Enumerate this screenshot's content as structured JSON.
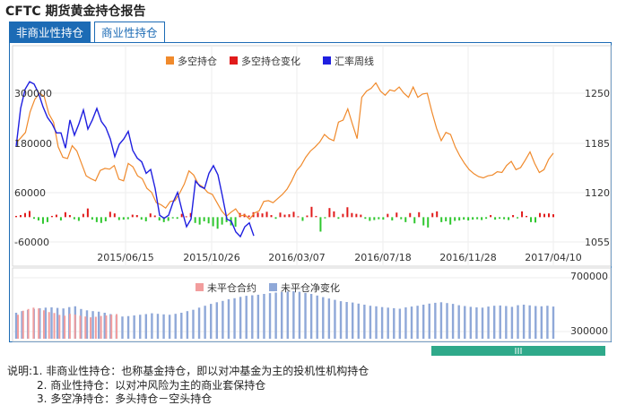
{
  "page": {
    "title": "CFTC 期货黄金持仓报告",
    "tabs": [
      {
        "label": "非商业性持仓",
        "active": true
      },
      {
        "label": "商业性持仓",
        "active": false
      }
    ],
    "notes": [
      "说明:1. 非商业性持仓：也称基金持仓，即以对冲基金为主的投机性机构持仓",
      "2. 商业性持仓：以对冲风险为主的商业套保持仓",
      "3. 多空净持仓：多头持仓－空头持仓"
    ]
  },
  "chart_data": [
    {
      "type": "line",
      "legend": [
        "多空持仓",
        "多空持仓变化",
        "汇率周线"
      ],
      "x_ticks": [
        "2015/06/15",
        "2015/10/26",
        "2016/03/07",
        "2016/07/18",
        "2016/11/28",
        "2017/04/10"
      ],
      "left_ticks": [
        "300000",
        "180000",
        "60000",
        "-60000"
      ],
      "right_ticks": [
        "1250",
        "1185",
        "1120",
        "1055"
      ],
      "yleft_lim": [
        -60000,
        300000
      ],
      "yright_lim": [
        1055,
        1250
      ],
      "series": [
        {
          "name": "多空持仓",
          "color": "#f08a2c",
          "axis": "left",
          "values": [
            180000,
            192000,
            205000,
            255000,
            285000,
            300000,
            292000,
            250000,
            230000,
            170000,
            145000,
            142000,
            173000,
            160000,
            130000,
            100000,
            93000,
            88000,
            113000,
            118000,
            116000,
            125000,
            92000,
            88000,
            130000,
            122000,
            100000,
            93000,
            70000,
            60000,
            35000,
            30000,
            22000,
            38000,
            40000,
            58000,
            80000,
            112000,
            102000,
            80000,
            73000,
            60000,
            55000,
            35000,
            15000,
            2000,
            12000,
            20000,
            3000,
            5000,
            -5000,
            10000,
            15000,
            38000,
            40000,
            35000,
            45000,
            55000,
            68000,
            88000,
            112000,
            125000,
            145000,
            160000,
            170000,
            182000,
            200000,
            190000,
            185000,
            230000,
            235000,
            262000,
            225000,
            190000,
            290000,
            305000,
            312000,
            325000,
            305000,
            295000,
            308000,
            305000,
            315000,
            300000,
            290000,
            315000,
            290000,
            298000,
            300000,
            255000,
            215000,
            185000,
            205000,
            200000,
            170000,
            148000,
            130000,
            115000,
            105000,
            98000,
            95000,
            100000,
            102000,
            110000,
            108000,
            125000,
            135000,
            115000,
            120000,
            138000,
            158000,
            130000,
            108000,
            115000,
            140000,
            155000
          ]
        },
        {
          "name": "多空持仓变化",
          "color": "#e11b1b",
          "neg_color": "#2ec72e",
          "axis": "left",
          "values": [
            3000,
            5000,
            10000,
            15000,
            -4000,
            -8000,
            -16000,
            -12000,
            3000,
            6000,
            -8000,
            12000,
            5000,
            -5000,
            -9000,
            8000,
            21000,
            -6000,
            -12000,
            -14000,
            -10000,
            13000,
            9000,
            -7000,
            -6000,
            -5000,
            6000,
            5000,
            -6000,
            -10000,
            9000,
            4000,
            -8000,
            -12000,
            -9000,
            -3000,
            -4000,
            8000,
            2000,
            10000,
            -14000,
            -18000,
            -10000,
            -15000,
            -22000,
            -28000,
            -18000,
            -12000,
            -20000,
            -23000,
            10000,
            8000,
            4000,
            12000,
            11000,
            9000,
            13000,
            5000,
            -4000,
            11000,
            6000,
            7000,
            13000,
            2000,
            -9000,
            4000,
            25000,
            3000,
            -35000,
            -3000,
            22000,
            14000,
            -4000,
            8000,
            24000,
            10000,
            8000,
            6000,
            -4000,
            -9000,
            -7000,
            -5000,
            -6000,
            8000,
            -8000,
            11000,
            -5000,
            -12000,
            10000,
            -15000,
            12000,
            -20000,
            -25000,
            10000,
            14000,
            -12000,
            -10000,
            -18000,
            -9000,
            -8000,
            -6000,
            -8000,
            -6000,
            -5000,
            -7000,
            -4000,
            5000,
            -6000,
            -4000,
            -5000,
            -7000,
            5000,
            -3000,
            14000,
            3000,
            -12000,
            -13000,
            10000,
            8000,
            9000,
            7000
          ]
        },
        {
          "name": "汇率周线",
          "color": "#1f1fe0",
          "axis": "right",
          "values": [
            1180,
            1230,
            1255,
            1265,
            1262,
            1250,
            1232,
            1218,
            1210,
            1198,
            1198,
            1178,
            1215,
            1195,
            1210,
            1228,
            1203,
            1215,
            1230,
            1213,
            1205,
            1190,
            1167,
            1183,
            1190,
            1200,
            1175,
            1165,
            1160,
            1145,
            1150,
            1125,
            1090,
            1086,
            1090,
            1107,
            1120,
            1096,
            1075,
            1085,
            1135,
            1128,
            1125,
            1145,
            1155,
            1143,
            1115,
            1085,
            1082,
            1068,
            1062,
            1075,
            1080,
            1063
          ]
        }
      ]
    },
    {
      "type": "bar",
      "legend": [
        "未平仓合约",
        "未平仓净变化"
      ],
      "right_ticks": [
        "700000",
        "300000"
      ],
      "ylim": [
        300000,
        700000
      ],
      "series": [
        {
          "name": "未平仓合约",
          "color": "#f29d9d",
          "values": [
            425000,
            455000,
            468000,
            478000,
            472000,
            458000,
            445000,
            438000,
            424000,
            418000,
            432000,
            426000,
            418000,
            412000,
            406000,
            410000,
            416000,
            420000,
            425000,
            430000
          ]
        },
        {
          "name": "未平仓净变化",
          "color": "#8fa8d8",
          "values": [
            440000,
            452000,
            460000,
            468000,
            474000,
            478000,
            480000,
            476000,
            472000,
            482000,
            488000,
            468000,
            458000,
            452000,
            448000,
            440000,
            430000,
            420000,
            412000,
            415000,
            420000,
            425000,
            430000,
            436000,
            432000,
            428000,
            425000,
            432000,
            440000,
            452000,
            462000,
            478000,
            492000,
            506000,
            518000,
            528000,
            540000,
            548000,
            558000,
            566000,
            570000,
            574000,
            580000,
            586000,
            590000,
            594000,
            598000,
            600000,
            596000,
            588000,
            580000,
            568000,
            556000,
            546000,
            536000,
            526000,
            520000,
            516000,
            508000,
            500000,
            492000,
            488000,
            482000,
            478000,
            474000,
            470000,
            480000,
            486000,
            492000,
            500000,
            508000,
            514000,
            518000,
            512000,
            506000,
            496000,
            490000,
            484000,
            480000,
            478000,
            486000,
            492000,
            494000,
            490000,
            484000,
            496000,
            500000,
            495000,
            490000,
            488000,
            492000,
            486000
          ]
        }
      ]
    }
  ]
}
